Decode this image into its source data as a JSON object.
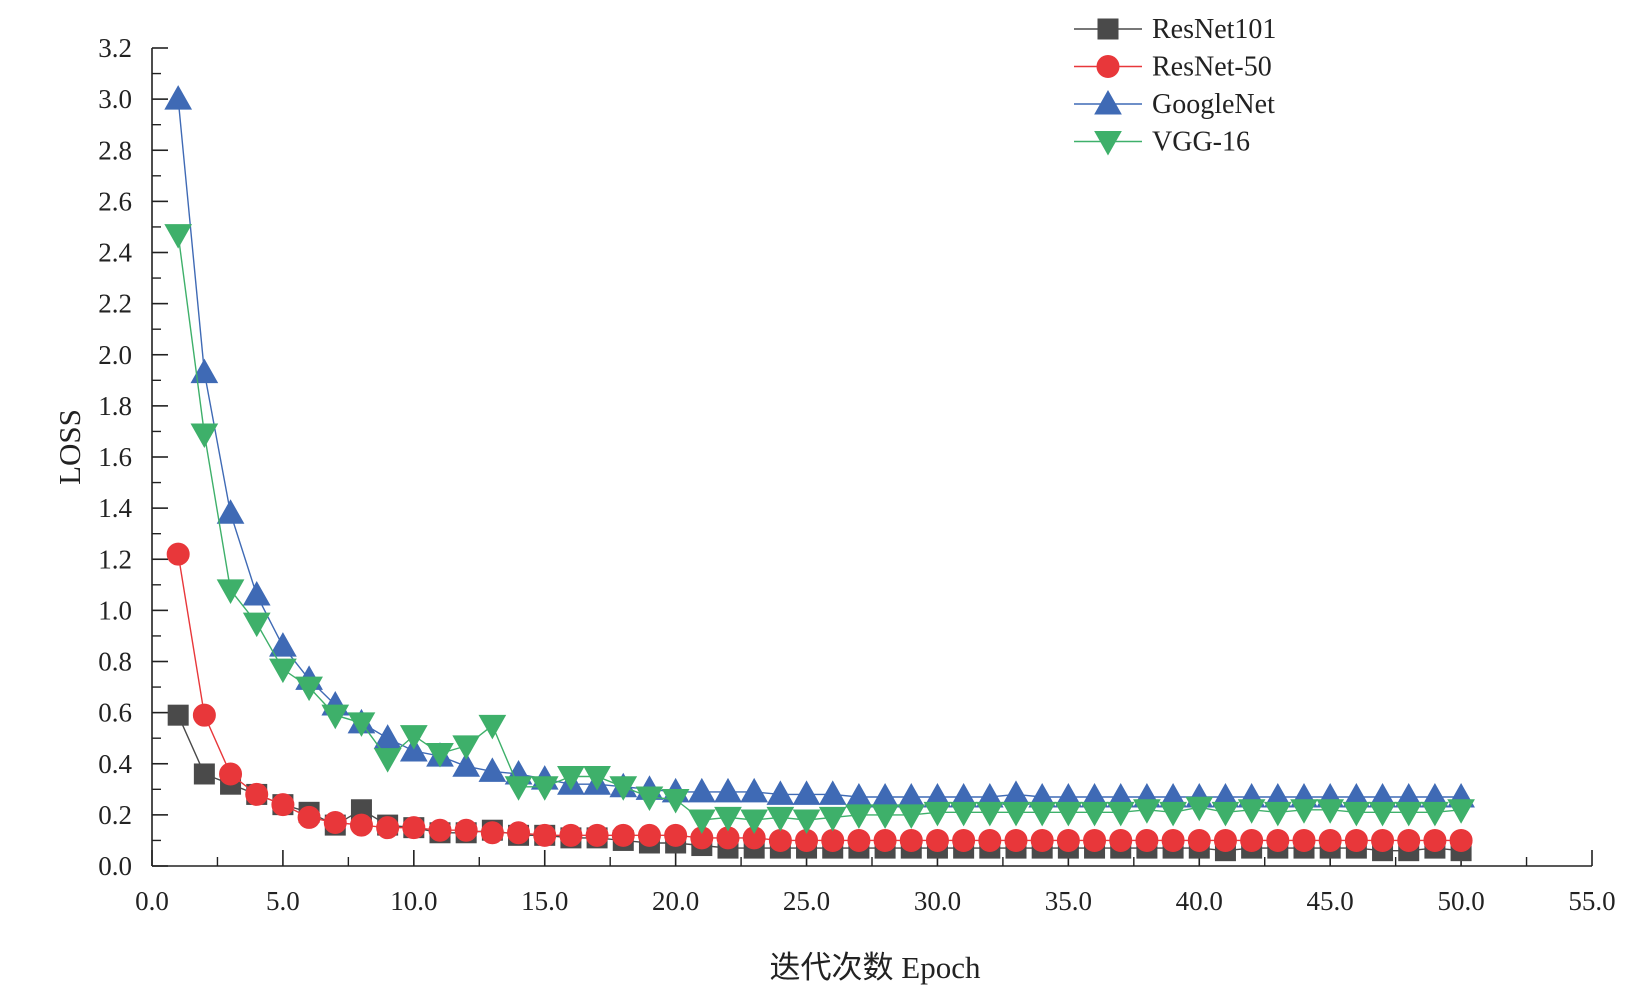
{
  "chart_data": {
    "type": "line",
    "title": "",
    "xlabel": "迭代次数 Epoch",
    "ylabel": "LOSS",
    "xlim": [
      0,
      55
    ],
    "ylim": [
      0,
      3.2
    ],
    "x_ticks": [
      "0.0",
      "5.0",
      "10.0",
      "15.0",
      "20.0",
      "25.0",
      "30.0",
      "35.0",
      "40.0",
      "45.0",
      "50.0",
      "55.0"
    ],
    "y_ticks": [
      "0.0",
      "0.2",
      "0.4",
      "0.6",
      "0.8",
      "1.0",
      "1.2",
      "1.4",
      "1.6",
      "1.8",
      "2.0",
      "2.2",
      "2.4",
      "2.6",
      "2.8",
      "3.0",
      "3.2"
    ],
    "grid": false,
    "legend_position": "top-right",
    "x": [
      1,
      2,
      3,
      4,
      5,
      6,
      7,
      8,
      9,
      10,
      11,
      12,
      13,
      14,
      15,
      16,
      17,
      18,
      19,
      20,
      21,
      22,
      23,
      24,
      25,
      26,
      27,
      28,
      29,
      30,
      31,
      32,
      33,
      34,
      35,
      36,
      37,
      38,
      39,
      40,
      41,
      42,
      43,
      44,
      45,
      46,
      47,
      48,
      49,
      50
    ],
    "series": [
      {
        "name": "ResNet101",
        "marker": "square",
        "color": "#4a4a4a",
        "values": [
          0.59,
          0.36,
          0.32,
          0.28,
          0.24,
          0.21,
          0.16,
          0.22,
          0.16,
          0.15,
          0.13,
          0.13,
          0.14,
          0.12,
          0.12,
          0.11,
          0.11,
          0.1,
          0.09,
          0.09,
          0.08,
          0.07,
          0.07,
          0.07,
          0.07,
          0.07,
          0.07,
          0.07,
          0.07,
          0.07,
          0.07,
          0.07,
          0.07,
          0.07,
          0.07,
          0.07,
          0.07,
          0.07,
          0.07,
          0.07,
          0.06,
          0.07,
          0.07,
          0.07,
          0.07,
          0.07,
          0.06,
          0.06,
          0.07,
          0.06
        ]
      },
      {
        "name": "ResNet-50",
        "marker": "circle",
        "color": "#e8373a",
        "values": [
          1.22,
          0.59,
          0.36,
          0.28,
          0.24,
          0.19,
          0.17,
          0.16,
          0.15,
          0.15,
          0.14,
          0.14,
          0.13,
          0.13,
          0.12,
          0.12,
          0.12,
          0.12,
          0.12,
          0.12,
          0.11,
          0.11,
          0.11,
          0.1,
          0.1,
          0.1,
          0.1,
          0.1,
          0.1,
          0.1,
          0.1,
          0.1,
          0.1,
          0.1,
          0.1,
          0.1,
          0.1,
          0.1,
          0.1,
          0.1,
          0.1,
          0.1,
          0.1,
          0.1,
          0.1,
          0.1,
          0.1,
          0.1,
          0.1,
          0.1
        ]
      },
      {
        "name": "GoogleNet",
        "marker": "triangle-up",
        "color": "#3f6ab5",
        "values": [
          3.0,
          1.93,
          1.38,
          1.06,
          0.86,
          0.73,
          0.63,
          0.56,
          0.5,
          0.45,
          0.43,
          0.39,
          0.37,
          0.36,
          0.34,
          0.32,
          0.32,
          0.31,
          0.3,
          0.29,
          0.29,
          0.29,
          0.29,
          0.28,
          0.28,
          0.28,
          0.27,
          0.27,
          0.27,
          0.27,
          0.27,
          0.27,
          0.28,
          0.27,
          0.27,
          0.27,
          0.27,
          0.27,
          0.27,
          0.27,
          0.27,
          0.27,
          0.27,
          0.27,
          0.27,
          0.27,
          0.27,
          0.27,
          0.27,
          0.27
        ]
      },
      {
        "name": "VGG-16",
        "marker": "triangle-down",
        "color": "#3eb06a",
        "values": [
          2.47,
          1.69,
          1.08,
          0.95,
          0.77,
          0.7,
          0.59,
          0.56,
          0.42,
          0.51,
          0.44,
          0.47,
          0.55,
          0.31,
          0.31,
          0.35,
          0.35,
          0.31,
          0.27,
          0.26,
          0.18,
          0.19,
          0.18,
          0.19,
          0.18,
          0.19,
          0.2,
          0.2,
          0.2,
          0.21,
          0.21,
          0.21,
          0.21,
          0.21,
          0.21,
          0.21,
          0.21,
          0.22,
          0.21,
          0.23,
          0.21,
          0.22,
          0.21,
          0.22,
          0.22,
          0.21,
          0.21,
          0.21,
          0.21,
          0.22
        ]
      }
    ]
  }
}
